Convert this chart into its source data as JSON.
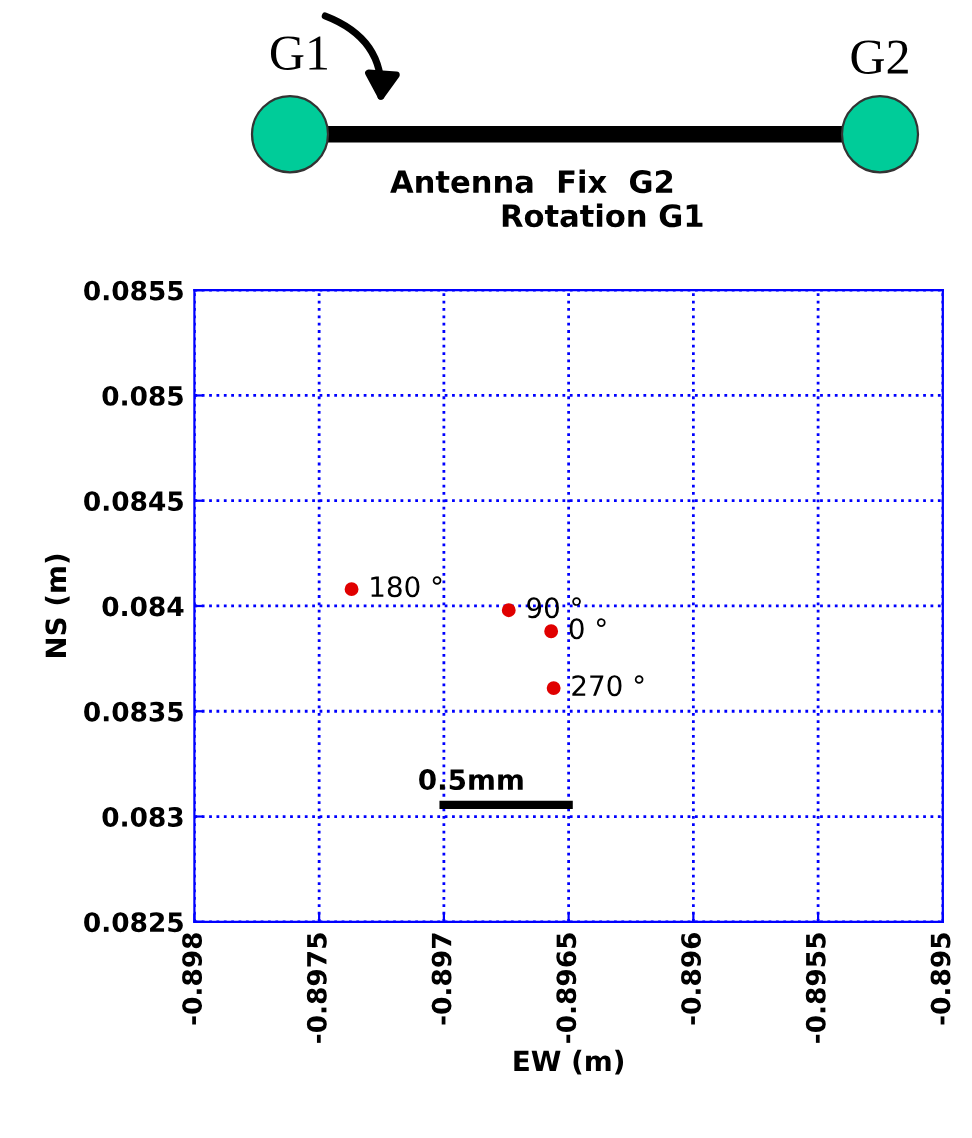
{
  "chart_data": {
    "type": "scatter",
    "xlabel": "EW (m)",
    "ylabel": "NS (m)",
    "annotations": [
      "G1",
      "G2",
      "Antenna  Fix  G2",
      "Rotation G1",
      {
        "text": "180 °",
        "x": -0.89737,
        "y": 0.08408
      },
      {
        "text": "90 °",
        "x": -0.89674,
        "y": 0.08398
      },
      {
        "text": "0 °",
        "x": -0.89657,
        "y": 0.08388
      },
      {
        "text": "270 °",
        "x": -0.89656,
        "y": 0.08361
      },
      "0.5mm"
    ],
    "x": [
      -0.89737,
      -0.89674,
      -0.89657,
      -0.89656
    ],
    "series": [
      {
        "color": "#e00000",
        "values": [
          0.08408,
          0.08398,
          0.08388,
          0.08361
        ]
      }
    ],
    "xlim": [
      -0.898,
      -0.895
    ],
    "xticks": [
      -0.898,
      -0.8975,
      -0.897,
      -0.8965,
      -0.896,
      -0.8955,
      -0.895
    ],
    "ylim": [
      0.0825,
      0.0855
    ],
    "yticks": [
      0.0825,
      0.083,
      0.0835,
      0.084,
      0.0845,
      0.085,
      0.0855
    ],
    "grid": true,
    "marker": "circle"
  }
}
